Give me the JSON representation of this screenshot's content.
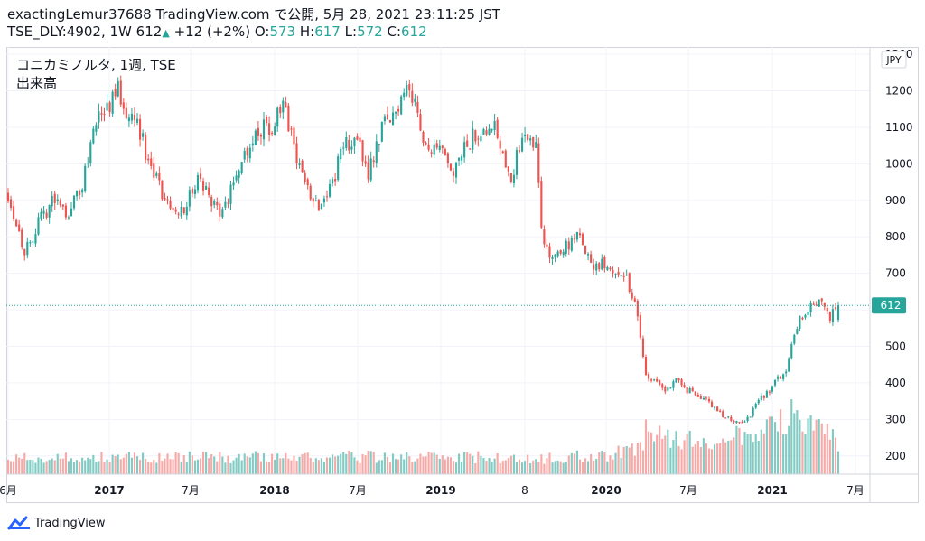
{
  "header": {
    "line1": "exactingLemur37688 TradingView.com で公開, 5月 28, 2021 23:11:25 JST",
    "symbol": "TSE_DLY:4902, 1W",
    "last": "612",
    "change": "+12 (+2%)",
    "o_label": "O:",
    "o_value": "573",
    "h_label": "H:",
    "h_value": "617",
    "l_label": "L:",
    "l_value": "572",
    "c_label": "C:",
    "c_value": "612"
  },
  "legend": {
    "title": "コニカミノルタ, 1週, TSE",
    "volume_label": "出来高"
  },
  "currency": "JPY",
  "price_badge": "612",
  "footer": {
    "brand": "TradingView",
    "logo_icon": "tradingview-logo-icon"
  },
  "colors": {
    "up": "#26a69a",
    "down": "#ef5350",
    "vol_up": "#80cbc4",
    "vol_down": "#f7a9a7",
    "badge": "#26a69a"
  },
  "chart_data": {
    "type": "candlestick",
    "title": "コニカミノルタ, 1週, TSE",
    "ylabel": "JPY",
    "ylim": [
      150,
      1320
    ],
    "yticks": [
      200,
      300,
      400,
      500,
      600,
      700,
      800,
      900,
      1000,
      1100,
      1200,
      1300
    ],
    "xticks": [
      "6月",
      "2017",
      "7月",
      "2018",
      "7月",
      "2019",
      "8",
      "2020",
      "7月",
      "2021",
      "7月"
    ],
    "last_price": 612,
    "volume_panel_label": "出来高",
    "close_path": [
      {
        "w": 0,
        "c": 920
      },
      {
        "w": 6,
        "c": 760
      },
      {
        "w": 10,
        "c": 820
      },
      {
        "w": 16,
        "c": 900
      },
      {
        "w": 22,
        "c": 870
      },
      {
        "w": 27,
        "c": 940
      },
      {
        "w": 31,
        "c": 1100
      },
      {
        "w": 38,
        "c": 1180
      },
      {
        "w": 40,
        "c": 1200
      },
      {
        "w": 43,
        "c": 1150
      },
      {
        "w": 47,
        "c": 1120
      },
      {
        "w": 52,
        "c": 980
      },
      {
        "w": 58,
        "c": 890
      },
      {
        "w": 64,
        "c": 880
      },
      {
        "w": 69,
        "c": 960
      },
      {
        "w": 74,
        "c": 900
      },
      {
        "w": 78,
        "c": 860
      },
      {
        "w": 84,
        "c": 1000
      },
      {
        "w": 90,
        "c": 1090
      },
      {
        "w": 96,
        "c": 1100
      },
      {
        "w": 100,
        "c": 1150
      },
      {
        "w": 103,
        "c": 1080
      },
      {
        "w": 108,
        "c": 940
      },
      {
        "w": 113,
        "c": 890
      },
      {
        "w": 118,
        "c": 950
      },
      {
        "w": 122,
        "c": 1050
      },
      {
        "w": 127,
        "c": 1060
      },
      {
        "w": 131,
        "c": 980
      },
      {
        "w": 136,
        "c": 1100
      },
      {
        "w": 141,
        "c": 1140
      },
      {
        "w": 145,
        "c": 1230
      },
      {
        "w": 149,
        "c": 1130
      },
      {
        "w": 153,
        "c": 1040
      },
      {
        "w": 158,
        "c": 1020
      },
      {
        "w": 162,
        "c": 960
      },
      {
        "w": 166,
        "c": 1040
      },
      {
        "w": 171,
        "c": 1090
      },
      {
        "w": 176,
        "c": 1120
      },
      {
        "w": 179,
        "c": 1060
      },
      {
        "w": 183,
        "c": 970
      },
      {
        "w": 188,
        "c": 1080
      },
      {
        "w": 192,
        "c": 1060
      },
      {
        "w": 194,
        "c": 820
      },
      {
        "w": 197,
        "c": 740
      },
      {
        "w": 202,
        "c": 770
      },
      {
        "w": 208,
        "c": 800
      },
      {
        "w": 212,
        "c": 720
      },
      {
        "w": 218,
        "c": 725
      },
      {
        "w": 224,
        "c": 700
      },
      {
        "w": 228,
        "c": 620
      },
      {
        "w": 232,
        "c": 420
      },
      {
        "w": 236,
        "c": 400
      },
      {
        "w": 240,
        "c": 380
      },
      {
        "w": 243,
        "c": 420
      },
      {
        "w": 247,
        "c": 380
      },
      {
        "w": 252,
        "c": 360
      },
      {
        "w": 256,
        "c": 340
      },
      {
        "w": 262,
        "c": 300
      },
      {
        "w": 268,
        "c": 290
      },
      {
        "w": 273,
        "c": 350
      },
      {
        "w": 278,
        "c": 390
      },
      {
        "w": 283,
        "c": 440
      },
      {
        "w": 287,
        "c": 560
      },
      {
        "w": 291,
        "c": 600
      },
      {
        "w": 295,
        "c": 620
      },
      {
        "w": 299,
        "c": 580
      },
      {
        "w": 302,
        "c": 612
      }
    ],
    "volume_level": [
      {
        "w": 0,
        "v": 0.22
      },
      {
        "w": 150,
        "v": 0.24
      },
      {
        "w": 196,
        "v": 0.22
      },
      {
        "w": 226,
        "v": 0.3
      },
      {
        "w": 232,
        "v": 0.55
      },
      {
        "w": 252,
        "v": 0.45
      },
      {
        "w": 272,
        "v": 0.5
      },
      {
        "w": 286,
        "v": 0.8
      },
      {
        "w": 302,
        "v": 0.45
      }
    ]
  }
}
